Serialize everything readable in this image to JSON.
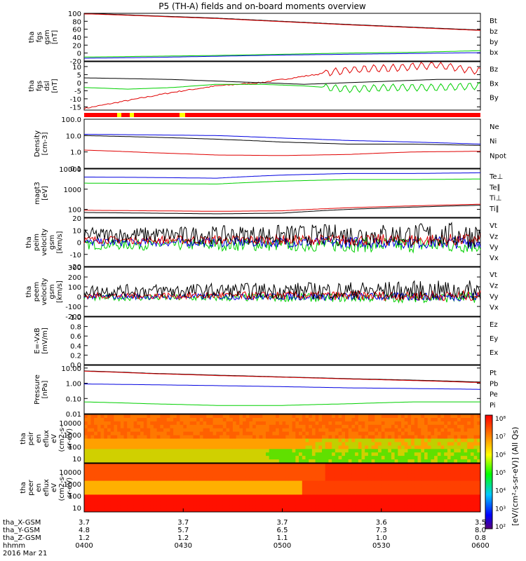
{
  "title": "P5 (TH-A) fields and on-board moments overview",
  "colors": {
    "black": "#000000",
    "red": "#e00000",
    "green": "#00d000",
    "blue": "#0000e0",
    "yellow": "#ffff00",
    "flag": "#ff0000"
  },
  "chart_data": [
    {
      "type": "line",
      "panel": "fgs_gsm",
      "ylabel": [
        "tha",
        "fgs",
        "gsm",
        "[nT]"
      ],
      "ylim": [
        -20,
        100
      ],
      "ticks": [
        100,
        80,
        60,
        40,
        20,
        0,
        -20
      ],
      "series": [
        {
          "name": "Bt",
          "color": "#000000",
          "values": [
            100,
            94,
            88,
            80,
            72,
            65,
            58
          ]
        },
        {
          "name": "bz",
          "color": "#e00000",
          "values": [
            99,
            93,
            87,
            79,
            71,
            64,
            57
          ]
        },
        {
          "name": "by",
          "color": "#00d000",
          "values": [
            -10,
            -8,
            -6,
            -3,
            0,
            2,
            6
          ]
        },
        {
          "name": "bx",
          "color": "#0000e0",
          "values": [
            -13,
            -11,
            -8,
            -5,
            -3,
            -1,
            1
          ]
        }
      ]
    },
    {
      "type": "line",
      "panel": "fgs_dsl",
      "ylabel": [
        "tha",
        "fgs",
        "dsl",
        "[nT]"
      ],
      "ylim": [
        -17,
        13
      ],
      "ticks": [
        10,
        5,
        0,
        -5,
        -10,
        -15
      ],
      "series": [
        {
          "name": "Bz",
          "color": "#e00000",
          "values": [
            -16,
            -11,
            -6,
            -2,
            0,
            4,
            8,
            9,
            11,
            7
          ]
        },
        {
          "name": "Bx",
          "color": "#000000",
          "values": [
            3,
            2.5,
            2,
            1,
            0,
            -1,
            0,
            1,
            2,
            2
          ]
        },
        {
          "name": "By",
          "color": "#00d000",
          "values": [
            -3,
            -4,
            -3,
            -1,
            -1,
            -2,
            -4,
            -3,
            -3,
            -2
          ]
        }
      ]
    },
    {
      "type": "line",
      "panel": "density",
      "ylabel": [
        "Density",
        "[cm-3]"
      ],
      "ylim": [
        0.1,
        100
      ],
      "log": true,
      "ticks": [
        "100.0",
        "10.0",
        "1.0",
        "0.1"
      ],
      "series": [
        {
          "name": "Ne",
          "color": "#e00000",
          "values": [
            1.3,
            0.9,
            0.65,
            0.6,
            0.7,
            1.0,
            1.1
          ]
        },
        {
          "name": "Ni",
          "color": "#000000",
          "values": [
            10,
            8,
            6,
            4,
            3,
            3,
            2.5
          ]
        },
        {
          "name": "Npot",
          "color": "#0000e0",
          "values": [
            12,
            11,
            10,
            7,
            5,
            4,
            3
          ]
        }
      ]
    },
    {
      "type": "line",
      "panel": "temperature",
      "ylabel": [
        "magt3",
        "[eV]"
      ],
      "ylim": [
        40,
        10000
      ],
      "log": true,
      "ticks": [
        "10000",
        "1000",
        "100"
      ],
      "series": [
        {
          "name": "Te⊥",
          "color": "#e00000",
          "values": [
            90,
            85,
            80,
            85,
            120,
            150,
            180
          ]
        },
        {
          "name": "Te∥",
          "color": "#000000",
          "values": [
            70,
            65,
            60,
            65,
            100,
            130,
            160
          ]
        },
        {
          "name": "Ti⊥",
          "color": "#00d000",
          "values": [
            2000,
            1900,
            1800,
            2500,
            3000,
            3000,
            3200
          ]
        },
        {
          "name": "Ti∥",
          "color": "#0000e0",
          "values": [
            4000,
            3800,
            3500,
            5000,
            6000,
            6000,
            6500
          ]
        }
      ]
    },
    {
      "type": "line",
      "panel": "peim_velocity",
      "ylabel": [
        "tha",
        "peim",
        "velocity",
        "gsm",
        "[km/s]"
      ],
      "ylim": [
        -20,
        20
      ],
      "ticks": [
        20,
        10,
        0,
        -10,
        -20
      ],
      "series": [
        {
          "name": "Vt"
        },
        {
          "name": "Vz"
        },
        {
          "name": "Vy"
        },
        {
          "name": "Vx"
        }
      ]
    },
    {
      "type": "line",
      "panel": "peem_velocity",
      "ylabel": [
        "tha",
        "peem",
        "velocity",
        "gsm",
        "[km/s]"
      ],
      "ylim": [
        -200,
        300
      ],
      "ticks": [
        300,
        200,
        100,
        0,
        -100,
        -200
      ],
      "series": [
        {
          "name": "Vt"
        },
        {
          "name": "Vz"
        },
        {
          "name": "Vy"
        },
        {
          "name": "Vx"
        }
      ]
    },
    {
      "type": "line",
      "panel": "efield",
      "ylabel": [
        "E=-VxB",
        "[mV/m]"
      ],
      "ylim": [
        0,
        1
      ],
      "ticks": [
        "1.0",
        "0.8",
        "0.6",
        "0.4",
        "0.2",
        "0.0"
      ],
      "series": [
        {
          "name": "Ez"
        },
        {
          "name": "Ey"
        },
        {
          "name": "Ex"
        }
      ]
    },
    {
      "type": "line",
      "panel": "pressure",
      "ylabel": [
        "Pressure",
        "[nPa]"
      ],
      "ylim": [
        0.01,
        15
      ],
      "log": true,
      "ticks": [
        "10.00",
        "1.00",
        "0.10",
        "0.01"
      ],
      "series": [
        {
          "name": "Pt",
          "color": "#000000",
          "values": [
            6.5,
            4.5,
            3.4,
            2.6,
            2.0,
            1.6,
            1.2
          ]
        },
        {
          "name": "Pb",
          "color": "#e00000",
          "values": [
            6.2,
            4.3,
            3.2,
            2.5,
            1.9,
            1.5,
            1.1
          ]
        },
        {
          "name": "Pe",
          "color": "#00d000",
          "values": [
            0.06,
            0.045,
            0.035,
            0.035,
            0.045,
            0.06,
            0.06
          ]
        },
        {
          "name": "Pi",
          "color": "#0000e0",
          "values": [
            0.9,
            0.8,
            0.7,
            0.6,
            0.5,
            0.45,
            0.4
          ]
        }
      ]
    },
    {
      "type": "heatmap",
      "panel": "peir",
      "ylabel": [
        "tha",
        "peir",
        "en",
        "eflux",
        "eV",
        "(cm2-s-",
        "sr-eV)"
      ],
      "yticks": [
        "10000",
        "1000",
        "100",
        "10"
      ]
    },
    {
      "type": "heatmap",
      "panel": "peer",
      "ylabel": [
        "tha",
        "peer",
        "en",
        "eflux",
        "eV",
        "(cm2-s-",
        "sr-eV)"
      ],
      "yticks": [
        "10000",
        "1000",
        "100",
        "10"
      ]
    }
  ],
  "colorbar": {
    "ticks": [
      "10⁸",
      "10⁷",
      "10⁶",
      "10⁵",
      "10⁴",
      "10³",
      "10²"
    ],
    "label": "[eV/(cm²-s-sr-eV)] (All Qs)"
  },
  "xaxis": {
    "rows": [
      {
        "label": "tha_X-GSM",
        "values": [
          "3.7",
          "3.7",
          "3.7",
          "3.6",
          "3.5"
        ]
      },
      {
        "label": "tha_Y-GSM",
        "values": [
          "4.8",
          "5.7",
          "6.5",
          "7.3",
          "8.0"
        ]
      },
      {
        "label": "tha_Z-GSM",
        "values": [
          "1.2",
          "1.2",
          "1.1",
          "1.0",
          "0.8"
        ]
      },
      {
        "label": "hhmm",
        "values": [
          "0400",
          "0430",
          "0500",
          "0530",
          "0600"
        ]
      }
    ],
    "date": "2016 Mar 21"
  }
}
